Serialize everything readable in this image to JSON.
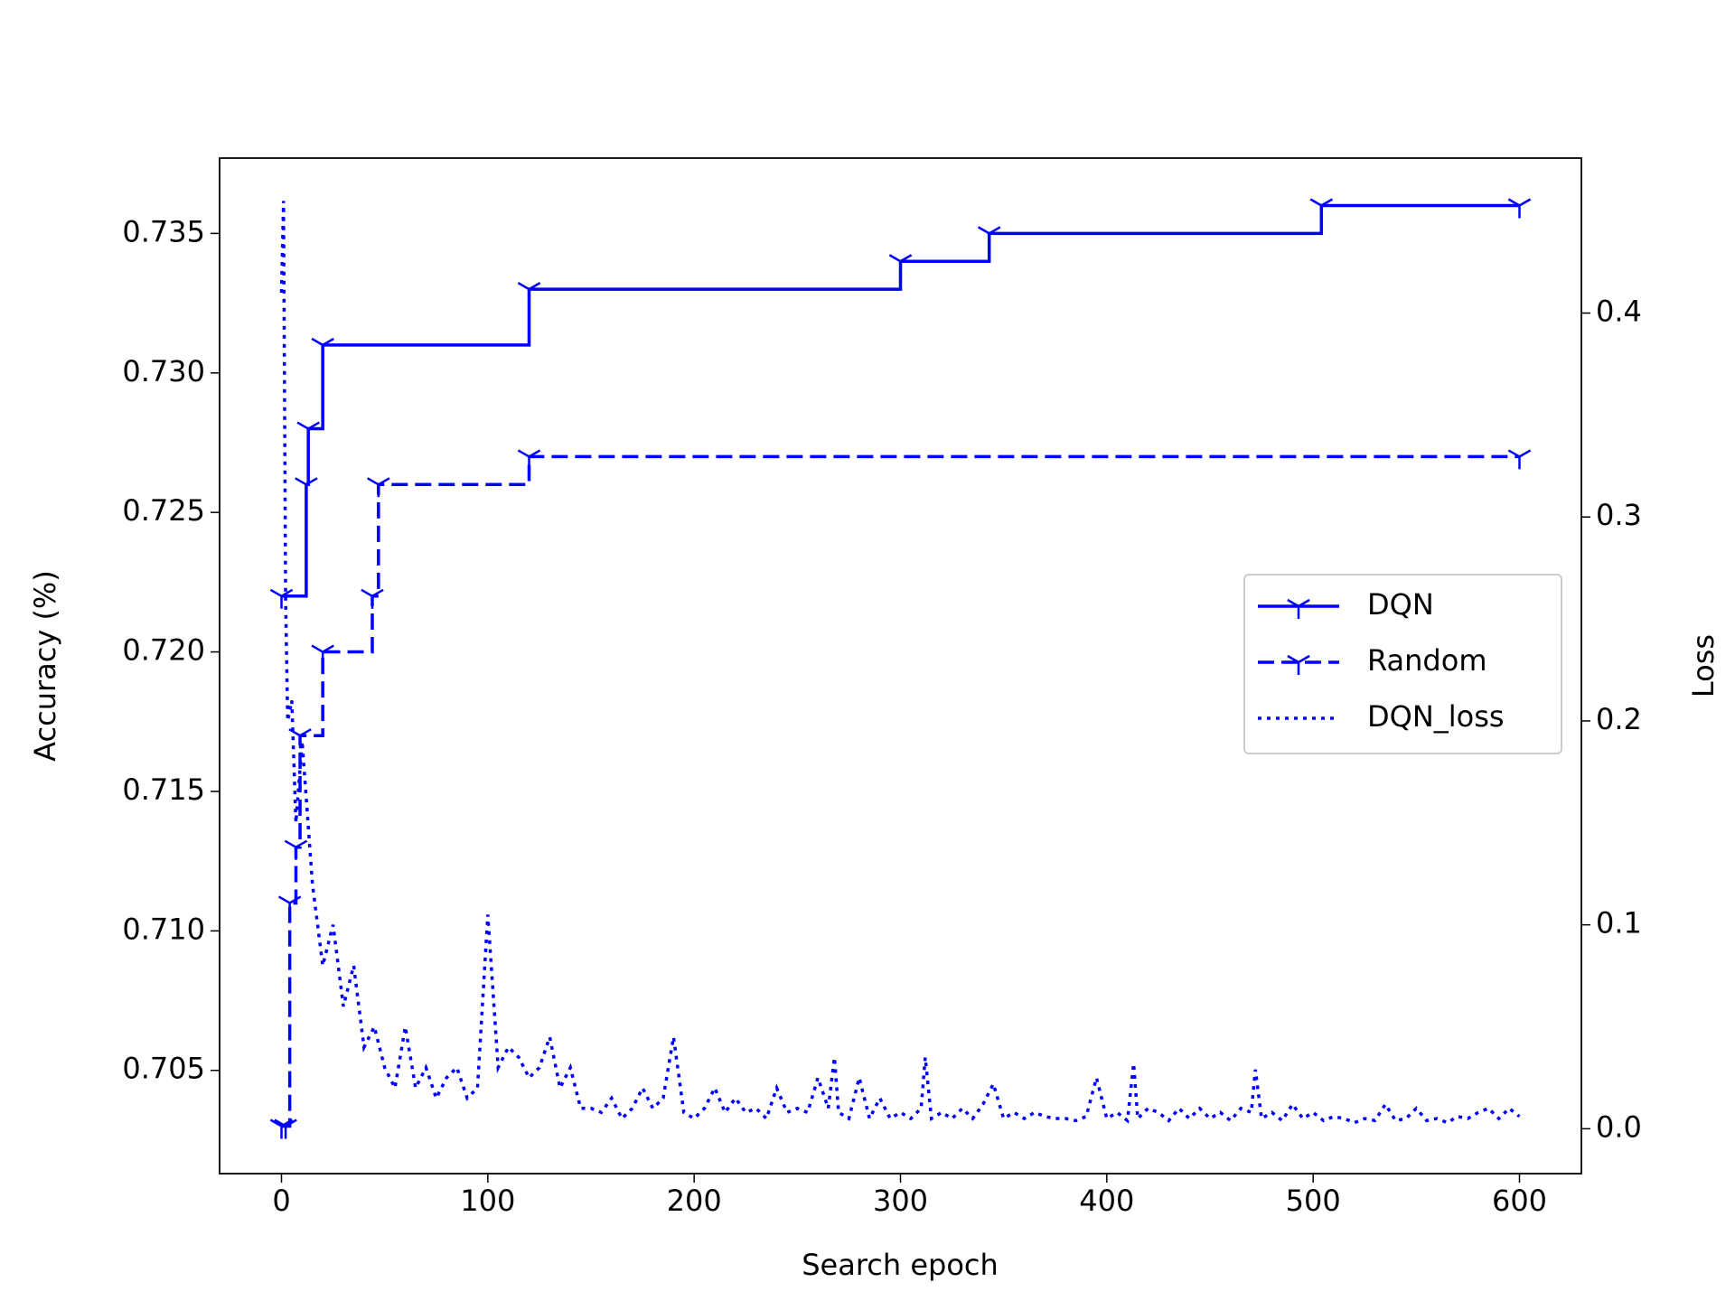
{
  "chart_data": {
    "type": "line",
    "xlabel": "Search epoch",
    "ylabel": "Accuracy (%)",
    "y2label": "Loss",
    "xlim": [
      -30,
      630
    ],
    "ylim": [
      0.7013,
      0.7377
    ],
    "y2lim": [
      -0.022,
      0.476
    ],
    "xticks": [
      0,
      100,
      200,
      300,
      400,
      500,
      600
    ],
    "yticks": [
      0.705,
      {
        "value": 0.71,
        "label": "0.710"
      },
      0.715,
      {
        "value": 0.72,
        "label": "0.720"
      },
      0.725,
      {
        "value": 0.73,
        "label": "0.730"
      },
      0.735
    ],
    "y2ticks": [
      {
        "value": 0,
        "label": "0.0"
      },
      0.1,
      0.2,
      0.3,
      0.4
    ],
    "legend_position": "right",
    "series": [
      {
        "name": "DQN",
        "color": "#0000ff",
        "linestyle": "solid",
        "marker": "tri_down",
        "drawstyle": "steps-post",
        "x": [
          0,
          12,
          13,
          20,
          120,
          300,
          343,
          504,
          600
        ],
        "values": [
          0.722,
          0.726,
          0.728,
          0.731,
          0.733,
          0.734,
          0.735,
          0.736,
          0.736
        ]
      },
      {
        "name": "Random",
        "color": "#0000ff",
        "linestyle": "dashed",
        "marker": "tri_down",
        "drawstyle": "steps-post",
        "x": [
          0,
          2,
          4,
          7,
          9,
          20,
          44,
          47,
          120,
          600
        ],
        "values": [
          0.703,
          0.703,
          0.711,
          0.713,
          0.717,
          0.72,
          0.722,
          0.726,
          0.727,
          0.727
        ]
      },
      {
        "name": "DQN_loss",
        "color": "#0000ff",
        "linestyle": "dotted",
        "axis": "y2",
        "x": [
          0,
          1,
          2,
          3,
          5,
          7,
          10,
          15,
          20,
          25,
          30,
          35,
          40,
          45,
          50,
          55,
          60,
          65,
          70,
          75,
          80,
          85,
          90,
          95,
          100,
          105,
          110,
          115,
          120,
          125,
          130,
          135,
          140,
          145,
          150,
          155,
          160,
          165,
          170,
          175,
          180,
          185,
          190,
          195,
          200,
          205,
          210,
          215,
          220,
          225,
          230,
          235,
          240,
          245,
          250,
          255,
          260,
          265,
          268,
          270,
          275,
          280,
          285,
          290,
          295,
          300,
          305,
          310,
          312,
          315,
          320,
          325,
          330,
          335,
          340,
          345,
          350,
          355,
          360,
          365,
          370,
          375,
          380,
          385,
          390,
          395,
          400,
          405,
          410,
          413,
          415,
          420,
          425,
          430,
          435,
          440,
          445,
          450,
          455,
          460,
          465,
          470,
          472,
          475,
          480,
          485,
          490,
          495,
          500,
          505,
          510,
          515,
          520,
          525,
          530,
          535,
          540,
          545,
          550,
          555,
          560,
          565,
          570,
          575,
          580,
          585,
          590,
          595,
          600
        ],
        "values": [
          0.41,
          0.455,
          0.26,
          0.2,
          0.21,
          0.15,
          0.19,
          0.12,
          0.08,
          0.1,
          0.06,
          0.08,
          0.04,
          0.05,
          0.03,
          0.02,
          0.05,
          0.02,
          0.03,
          0.015,
          0.025,
          0.03,
          0.015,
          0.02,
          0.105,
          0.03,
          0.04,
          0.035,
          0.025,
          0.03,
          0.045,
          0.02,
          0.03,
          0.01,
          0.01,
          0.008,
          0.015,
          0.005,
          0.01,
          0.02,
          0.01,
          0.015,
          0.045,
          0.008,
          0.005,
          0.01,
          0.02,
          0.008,
          0.015,
          0.008,
          0.01,
          0.005,
          0.02,
          0.008,
          0.01,
          0.008,
          0.025,
          0.01,
          0.035,
          0.008,
          0.005,
          0.025,
          0.005,
          0.015,
          0.005,
          0.008,
          0.005,
          0.01,
          0.035,
          0.005,
          0.008,
          0.005,
          0.01,
          0.005,
          0.012,
          0.022,
          0.005,
          0.008,
          0.005,
          0.008,
          0.006,
          0.005,
          0.005,
          0.004,
          0.006,
          0.025,
          0.005,
          0.008,
          0.004,
          0.032,
          0.005,
          0.01,
          0.008,
          0.004,
          0.01,
          0.005,
          0.01,
          0.005,
          0.008,
          0.004,
          0.01,
          0.008,
          0.029,
          0.005,
          0.008,
          0.004,
          0.012,
          0.005,
          0.008,
          0.004,
          0.006,
          0.005,
          0.003,
          0.005,
          0.004,
          0.012,
          0.004,
          0.005,
          0.01,
          0.004,
          0.005,
          0.003,
          0.006,
          0.005,
          0.008,
          0.01,
          0.005,
          0.01,
          0.006
        ]
      }
    ]
  }
}
